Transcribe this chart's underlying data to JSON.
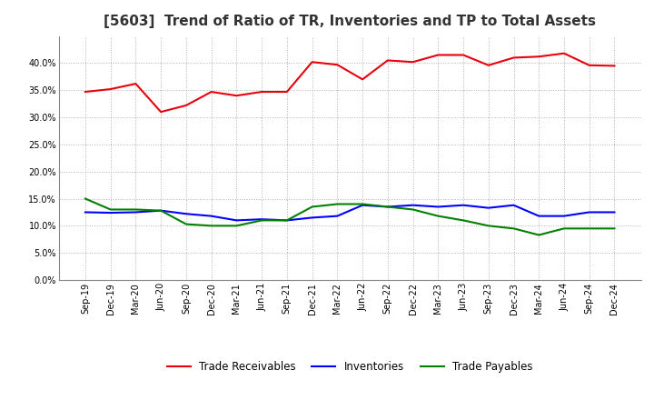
{
  "title": "[5603]  Trend of Ratio of TR, Inventories and TP to Total Assets",
  "x_labels": [
    "Sep-19",
    "Dec-19",
    "Mar-20",
    "Jun-20",
    "Sep-20",
    "Dec-20",
    "Mar-21",
    "Jun-21",
    "Sep-21",
    "Dec-21",
    "Mar-22",
    "Jun-22",
    "Sep-22",
    "Dec-22",
    "Mar-23",
    "Jun-23",
    "Sep-23",
    "Dec-23",
    "Mar-24",
    "Jun-24",
    "Sep-24",
    "Dec-24"
  ],
  "trade_receivables": [
    0.347,
    0.352,
    0.362,
    0.31,
    0.322,
    0.347,
    0.34,
    0.347,
    0.347,
    0.402,
    0.397,
    0.37,
    0.405,
    0.402,
    0.415,
    0.415,
    0.396,
    0.41,
    0.412,
    0.418,
    0.396,
    0.395
  ],
  "inventories": [
    0.125,
    0.124,
    0.125,
    0.128,
    0.122,
    0.118,
    0.11,
    0.112,
    0.11,
    0.115,
    0.118,
    0.138,
    0.135,
    0.138,
    0.135,
    0.138,
    0.133,
    0.138,
    0.118,
    0.118,
    0.125,
    0.125
  ],
  "trade_payables": [
    0.15,
    0.13,
    0.13,
    0.128,
    0.103,
    0.1,
    0.1,
    0.11,
    0.11,
    0.135,
    0.14,
    0.14,
    0.135,
    0.13,
    0.118,
    0.11,
    0.1,
    0.095,
    0.083,
    0.095,
    0.095,
    0.095
  ],
  "tr_color": "#e8000d",
  "inv_color": "#0000ff",
  "tp_color": "#008000",
  "ylim": [
    0.0,
    0.45
  ],
  "yticks": [
    0.0,
    0.05,
    0.1,
    0.15,
    0.2,
    0.25,
    0.3,
    0.35,
    0.4
  ],
  "background_color": "#ffffff",
  "grid_color": "#b0b0b0",
  "legend_labels": [
    "Trade Receivables",
    "Inventories",
    "Trade Payables"
  ],
  "line_width": 1.5,
  "title_fontsize": 11,
  "tick_fontsize": 7,
  "legend_fontsize": 8.5
}
